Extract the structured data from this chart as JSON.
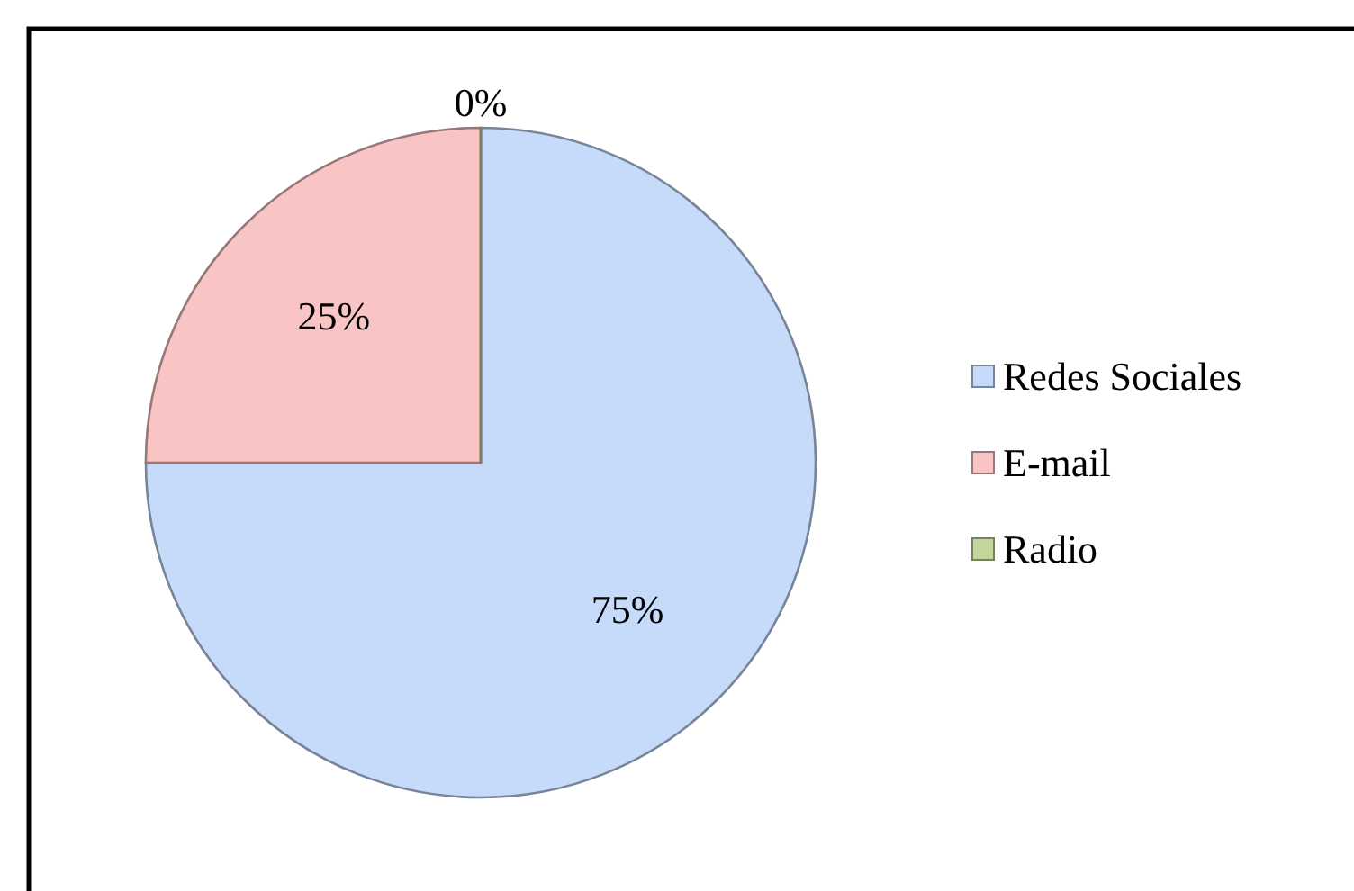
{
  "chart_data": {
    "type": "pie",
    "categories": [
      "Redes Sociales",
      "E-mail",
      "Radio"
    ],
    "values": [
      75,
      25,
      0
    ],
    "colors": [
      "#c6dafa",
      "#f8c4c4",
      "#c3d69b"
    ],
    "value_labels": [
      "75%",
      "25%",
      "0%"
    ],
    "legend": "right"
  }
}
